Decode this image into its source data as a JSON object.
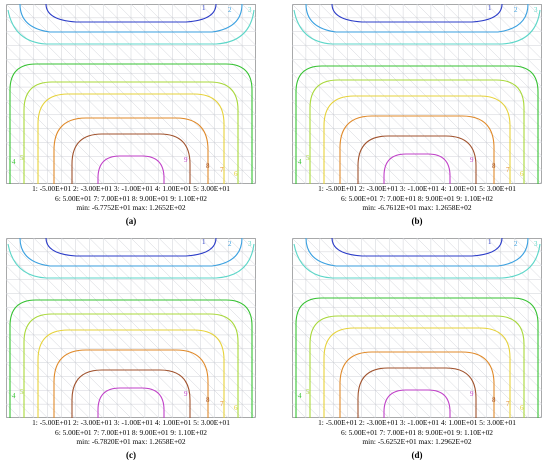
{
  "panels": [
    {
      "id": "a",
      "caption": "(a)",
      "legend_line1": "1: -5.00E+01   2: -3.00E+01   3: -1.00E+01   4: 1.00E+01   5: 3.00E+01",
      "legend_line2": "6: 5.00E+01   7: 7.00E+01   8: 9.00E+01   9: 1.10E+02",
      "minmax": "min: -6.7752E+01   max: 1.2652E+02"
    },
    {
      "id": "b",
      "caption": "(b)",
      "legend_line1": "1: -5.00E+01   2: -3.00E+01   3: -1.00E+01   4: 1.00E+01   5: 3.00E+01",
      "legend_line2": "6: 5.00E+01   7: 7.00E+01   8: 9.00E+01   9: 1.10E+02",
      "minmax": "min: -6.7612E+01   max: 1.2658E+02"
    },
    {
      "id": "c",
      "caption": "(c)",
      "legend_line1": "1: -5.00E+01   2: -3.00E+01   3: -1.00E+01   4: 1.00E+01   5: 3.00E+01",
      "legend_line2": "6: 5.00E+01   7: 7.00E+01   8: 9.00E+01   9: 1.10E+02",
      "minmax": "min: -6.7820E+01   max: 1.2658E+02"
    },
    {
      "id": "d",
      "caption": "(d)",
      "legend_line1": "1: -5.00E+01   2: -3.00E+01   3: -1.00E+01   4: 1.00E+01   5: 3.00E+01",
      "legend_line2": "6: 5.00E+01   7: 7.00E+01   8: 9.00E+01   9: 1.10E+02",
      "minmax": "min: -5.6252E+01   max: 1.2962E+02"
    }
  ],
  "contour_levels": [
    {
      "label": "1",
      "value": -50,
      "color": "#2b3cc8"
    },
    {
      "label": "2",
      "value": -30,
      "color": "#3aa0e0"
    },
    {
      "label": "3",
      "value": -10,
      "color": "#5cd6c8"
    },
    {
      "label": "4",
      "value": 10,
      "color": "#36c232"
    },
    {
      "label": "5",
      "value": 30,
      "color": "#a8d83a"
    },
    {
      "label": "6",
      "value": 50,
      "color": "#e6d23a"
    },
    {
      "label": "7",
      "value": 70,
      "color": "#e08a2a"
    },
    {
      "label": "8",
      "value": 90,
      "color": "#a0522d"
    },
    {
      "label": "9",
      "value": 110,
      "color": "#c040c8"
    }
  ]
}
